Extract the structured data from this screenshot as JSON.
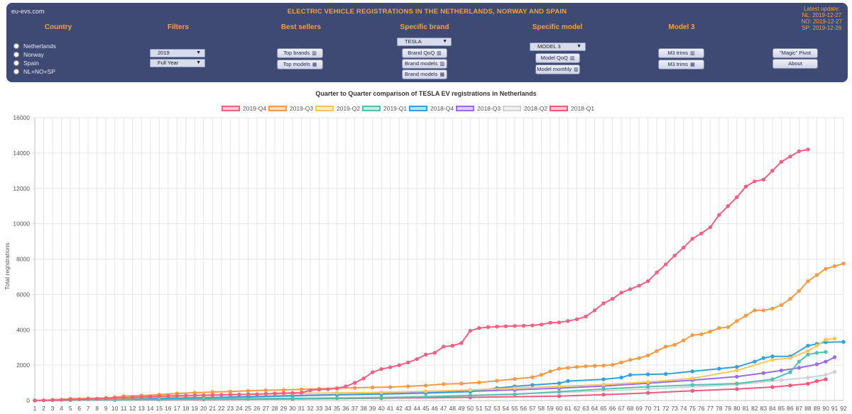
{
  "header": {
    "site": "eu-evs.com",
    "title": "ELECTRIC VEHICLE REGISTRATIONS IN THE NETHERLANDS, NORWAY AND SPAIN",
    "update_title": "Latest update:",
    "update_nl": "NL: 2019-12-27",
    "update_no": "NO: 2019-12-27",
    "update_sp": "SP: 2019-12-26"
  },
  "columns": {
    "country": "Country",
    "filters": "Filters",
    "best_sellers": "Best sellers",
    "specific_brand": "Specific brand",
    "specific_model": "Specific model",
    "model3": "Model 3"
  },
  "countries": [
    "Netherlands",
    "Norway",
    "Spain",
    "NL+NO+SP"
  ],
  "filters": {
    "year": "2019",
    "period": "Full Year"
  },
  "buttons": {
    "top_brands": "Top brands",
    "top_models": "Top models",
    "brand_qoq": "Brand QoQ",
    "brand_models": "Brand models",
    "brand_models2": "Brand models",
    "model_qoq": "Model QoQ",
    "model_monthly": "Model monthly",
    "m3_trims": "M3 trims",
    "m3_trims2": "M3 trims",
    "magic_pivot": "\"Magic\" Pivot",
    "about": "About"
  },
  "selects": {
    "brand": "TESLA",
    "model": "MODEL 3"
  },
  "icons": {
    "bar": "bar-chart-icon",
    "table": "table-icon"
  },
  "chart_data": {
    "type": "line",
    "title": "Quarter to Quarter comparison of TESLA EV registrations in Netherlands",
    "ylabel": "Total registrations",
    "xlabel": "",
    "ylim": [
      0,
      16000
    ],
    "yticks": [
      0,
      2000,
      4000,
      6000,
      8000,
      10000,
      12000,
      14000,
      16000
    ],
    "x": [
      1,
      92
    ],
    "grid": true,
    "legend": "top",
    "series": [
      {
        "name": "2019-Q4",
        "color": "#f0607f",
        "points": [
          [
            1,
            0
          ],
          [
            2,
            10
          ],
          [
            3,
            20
          ],
          [
            4,
            40
          ],
          [
            5,
            60
          ],
          [
            6,
            70
          ],
          [
            7,
            80
          ],
          [
            8,
            100
          ],
          [
            9,
            120
          ],
          [
            10,
            140
          ],
          [
            11,
            160
          ],
          [
            12,
            180
          ],
          [
            13,
            200
          ],
          [
            14,
            220
          ],
          [
            15,
            240
          ],
          [
            16,
            260
          ],
          [
            17,
            270
          ],
          [
            18,
            280
          ],
          [
            19,
            290
          ],
          [
            20,
            300
          ],
          [
            21,
            310
          ],
          [
            22,
            320
          ],
          [
            23,
            330
          ],
          [
            24,
            340
          ],
          [
            25,
            350
          ],
          [
            26,
            360
          ],
          [
            27,
            380
          ],
          [
            28,
            400
          ],
          [
            29,
            420
          ],
          [
            30,
            430
          ],
          [
            31,
            440
          ],
          [
            32,
            580
          ],
          [
            33,
            620
          ],
          [
            34,
            640
          ],
          [
            35,
            680
          ],
          [
            36,
            800
          ],
          [
            37,
            1000
          ],
          [
            38,
            1250
          ],
          [
            39,
            1600
          ],
          [
            40,
            1780
          ],
          [
            41,
            1880
          ],
          [
            42,
            2000
          ],
          [
            43,
            2150
          ],
          [
            44,
            2350
          ],
          [
            45,
            2600
          ],
          [
            46,
            2700
          ],
          [
            47,
            3050
          ],
          [
            48,
            3100
          ],
          [
            49,
            3250
          ],
          [
            50,
            3950
          ],
          [
            51,
            4100
          ],
          [
            52,
            4150
          ],
          [
            53,
            4180
          ],
          [
            54,
            4200
          ],
          [
            55,
            4220
          ],
          [
            56,
            4230
          ],
          [
            57,
            4250
          ],
          [
            58,
            4300
          ],
          [
            59,
            4400
          ],
          [
            60,
            4420
          ],
          [
            61,
            4500
          ],
          [
            62,
            4600
          ],
          [
            63,
            4750
          ],
          [
            64,
            5100
          ],
          [
            65,
            5500
          ],
          [
            66,
            5750
          ],
          [
            67,
            6100
          ],
          [
            68,
            6300
          ],
          [
            69,
            6500
          ],
          [
            70,
            6750
          ],
          [
            71,
            7250
          ],
          [
            72,
            7700
          ],
          [
            73,
            8200
          ],
          [
            74,
            8650
          ],
          [
            75,
            9150
          ],
          [
            76,
            9450
          ],
          [
            77,
            9800
          ],
          [
            78,
            10500
          ],
          [
            79,
            11000
          ],
          [
            80,
            11500
          ],
          [
            81,
            12100
          ],
          [
            82,
            12400
          ],
          [
            83,
            12500
          ],
          [
            84,
            13000
          ],
          [
            85,
            13500
          ],
          [
            86,
            13800
          ],
          [
            87,
            14100
          ],
          [
            88,
            14200
          ]
        ]
      },
      {
        "name": "2019-Q3",
        "color": "#f59a46",
        "points": [
          [
            1,
            0
          ],
          [
            3,
            40
          ],
          [
            5,
            100
          ],
          [
            7,
            120
          ],
          [
            9,
            150
          ],
          [
            10,
            180
          ],
          [
            11,
            250
          ],
          [
            13,
            280
          ],
          [
            15,
            330
          ],
          [
            17,
            400
          ],
          [
            19,
            440
          ],
          [
            21,
            480
          ],
          [
            23,
            510
          ],
          [
            25,
            550
          ],
          [
            27,
            580
          ],
          [
            29,
            600
          ],
          [
            31,
            630
          ],
          [
            33,
            660
          ],
          [
            35,
            700
          ],
          [
            37,
            720
          ],
          [
            39,
            740
          ],
          [
            41,
            760
          ],
          [
            43,
            800
          ],
          [
            45,
            850
          ],
          [
            47,
            930
          ],
          [
            49,
            960
          ],
          [
            51,
            1020
          ],
          [
            53,
            1120
          ],
          [
            55,
            1220
          ],
          [
            57,
            1320
          ],
          [
            58,
            1450
          ],
          [
            59,
            1650
          ],
          [
            60,
            1800
          ],
          [
            61,
            1850
          ],
          [
            62,
            1900
          ],
          [
            63,
            1940
          ],
          [
            64,
            1960
          ],
          [
            65,
            1980
          ],
          [
            66,
            2020
          ],
          [
            67,
            2150
          ],
          [
            68,
            2300
          ],
          [
            69,
            2400
          ],
          [
            70,
            2550
          ],
          [
            71,
            2800
          ],
          [
            72,
            3050
          ],
          [
            73,
            3150
          ],
          [
            74,
            3400
          ],
          [
            75,
            3700
          ],
          [
            76,
            3750
          ],
          [
            77,
            3900
          ],
          [
            78,
            4100
          ],
          [
            79,
            4150
          ],
          [
            80,
            4500
          ],
          [
            81,
            4800
          ],
          [
            82,
            5100
          ],
          [
            83,
            5100
          ],
          [
            84,
            5200
          ],
          [
            85,
            5400
          ],
          [
            86,
            5750
          ],
          [
            87,
            6200
          ],
          [
            88,
            6750
          ],
          [
            89,
            7100
          ],
          [
            90,
            7450
          ],
          [
            91,
            7600
          ],
          [
            92,
            7750
          ]
        ]
      },
      {
        "name": "2019-Q2",
        "color": "#f7c75a",
        "points": [
          [
            1,
            0
          ],
          [
            5,
            60
          ],
          [
            10,
            120
          ],
          [
            15,
            200
          ],
          [
            20,
            280
          ],
          [
            25,
            350
          ],
          [
            30,
            400
          ],
          [
            35,
            430
          ],
          [
            40,
            460
          ],
          [
            45,
            520
          ],
          [
            50,
            600
          ],
          [
            55,
            700
          ],
          [
            60,
            800
          ],
          [
            65,
            900
          ],
          [
            70,
            1050
          ],
          [
            75,
            1250
          ],
          [
            80,
            1700
          ],
          [
            84,
            2300
          ],
          [
            86,
            2400
          ],
          [
            88,
            2800
          ],
          [
            89,
            3100
          ],
          [
            90,
            3450
          ],
          [
            91,
            3500
          ]
        ]
      },
      {
        "name": "2019-Q1",
        "color": "#4fc3b0",
        "points": [
          [
            1,
            0
          ],
          [
            5,
            20
          ],
          [
            10,
            40
          ],
          [
            15,
            60
          ],
          [
            20,
            80
          ],
          [
            25,
            100
          ],
          [
            30,
            120
          ],
          [
            35,
            130
          ],
          [
            40,
            150
          ],
          [
            45,
            200
          ],
          [
            50,
            280
          ],
          [
            55,
            350
          ],
          [
            60,
            500
          ],
          [
            65,
            650
          ],
          [
            70,
            780
          ],
          [
            75,
            880
          ],
          [
            80,
            960
          ],
          [
            84,
            1200
          ],
          [
            86,
            1600
          ],
          [
            87,
            2200
          ],
          [
            88,
            2600
          ],
          [
            89,
            2700
          ],
          [
            90,
            2750
          ]
        ]
      },
      {
        "name": "2018-Q4",
        "color": "#35a0dc",
        "points": [
          [
            1,
            0
          ],
          [
            5,
            50
          ],
          [
            10,
            80
          ],
          [
            15,
            120
          ],
          [
            20,
            160
          ],
          [
            25,
            200
          ],
          [
            30,
            260
          ],
          [
            35,
            320
          ],
          [
            40,
            360
          ],
          [
            45,
            420
          ],
          [
            50,
            500
          ],
          [
            53,
            700
          ],
          [
            55,
            800
          ],
          [
            57,
            880
          ],
          [
            60,
            980
          ],
          [
            61,
            1100
          ],
          [
            65,
            1200
          ],
          [
            67,
            1300
          ],
          [
            68,
            1450
          ],
          [
            70,
            1480
          ],
          [
            72,
            1500
          ],
          [
            75,
            1650
          ],
          [
            78,
            1800
          ],
          [
            80,
            1900
          ],
          [
            82,
            2200
          ],
          [
            83,
            2400
          ],
          [
            84,
            2500
          ],
          [
            86,
            2500
          ],
          [
            88,
            3100
          ],
          [
            89,
            3200
          ],
          [
            90,
            3300
          ],
          [
            92,
            3320
          ]
        ]
      },
      {
        "name": "2018-Q3",
        "color": "#9b6ce8",
        "points": [
          [
            1,
            0
          ],
          [
            5,
            40
          ],
          [
            10,
            80
          ],
          [
            15,
            120
          ],
          [
            20,
            160
          ],
          [
            25,
            220
          ],
          [
            30,
            280
          ],
          [
            35,
            330
          ],
          [
            40,
            380
          ],
          [
            45,
            440
          ],
          [
            50,
            520
          ],
          [
            55,
            600
          ],
          [
            60,
            700
          ],
          [
            65,
            820
          ],
          [
            70,
            980
          ],
          [
            75,
            1150
          ],
          [
            80,
            1350
          ],
          [
            83,
            1550
          ],
          [
            85,
            1700
          ],
          [
            87,
            1850
          ],
          [
            89,
            2050
          ],
          [
            90,
            2200
          ],
          [
            91,
            2450
          ]
        ]
      },
      {
        "name": "2018-Q2",
        "color": "#cfd2d7",
        "points": [
          [
            1,
            0
          ],
          [
            10,
            40
          ],
          [
            20,
            80
          ],
          [
            30,
            130
          ],
          [
            40,
            200
          ],
          [
            50,
            300
          ],
          [
            60,
            450
          ],
          [
            70,
            650
          ],
          [
            80,
            900
          ],
          [
            85,
            1150
          ],
          [
            88,
            1300
          ],
          [
            90,
            1450
          ],
          [
            91,
            1620
          ]
        ]
      },
      {
        "name": "2018-Q1",
        "color": "#ef5a7c",
        "points": [
          [
            1,
            0
          ],
          [
            10,
            30
          ],
          [
            20,
            60
          ],
          [
            30,
            90
          ],
          [
            40,
            130
          ],
          [
            50,
            180
          ],
          [
            60,
            250
          ],
          [
            65,
            330
          ],
          [
            70,
            430
          ],
          [
            75,
            550
          ],
          [
            80,
            650
          ],
          [
            84,
            760
          ],
          [
            86,
            850
          ],
          [
            88,
            950
          ],
          [
            89,
            1100
          ],
          [
            90,
            1200
          ]
        ]
      }
    ]
  }
}
